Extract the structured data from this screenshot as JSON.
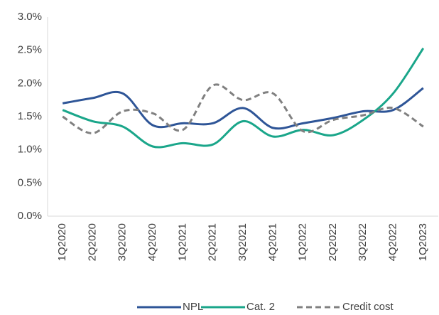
{
  "chart_data": {
    "type": "line",
    "categories": [
      "1Q2020",
      "2Q2020",
      "3Q2020",
      "4Q2020",
      "1Q2021",
      "2Q2021",
      "3Q2021",
      "4Q2021",
      "1Q2022",
      "2Q2022",
      "3Q2022",
      "4Q2022",
      "1Q2023"
    ],
    "series": [
      {
        "name": "NPL",
        "color": "#2e5597",
        "values": [
          1.7,
          1.78,
          1.85,
          1.37,
          1.4,
          1.4,
          1.63,
          1.33,
          1.4,
          1.48,
          1.58,
          1.6,
          1.93
        ]
      },
      {
        "name": "Cat. 2",
        "color": "#1aa68a",
        "values": [
          1.6,
          1.43,
          1.35,
          1.05,
          1.1,
          1.08,
          1.43,
          1.2,
          1.3,
          1.22,
          1.45,
          1.85,
          2.53
        ]
      },
      {
        "name": "Credit cost",
        "color": "#808080",
        "dashed": true,
        "values": [
          1.5,
          1.25,
          1.58,
          1.55,
          1.3,
          1.97,
          1.75,
          1.85,
          1.28,
          1.45,
          1.52,
          1.63,
          1.35
        ]
      }
    ],
    "ylim": [
      0,
      3
    ],
    "yticks": [
      {
        "value": 0,
        "label": "0.0%"
      },
      {
        "value": 0.5,
        "label": "0.5%"
      },
      {
        "value": 1,
        "label": "1.0%"
      },
      {
        "value": 1.5,
        "label": "1.5%"
      },
      {
        "value": 2,
        "label": "2.0%"
      },
      {
        "value": 2.5,
        "label": "2.5%"
      },
      {
        "value": 3,
        "label": "3.0%"
      }
    ],
    "grid": false,
    "legend": "bottom"
  }
}
